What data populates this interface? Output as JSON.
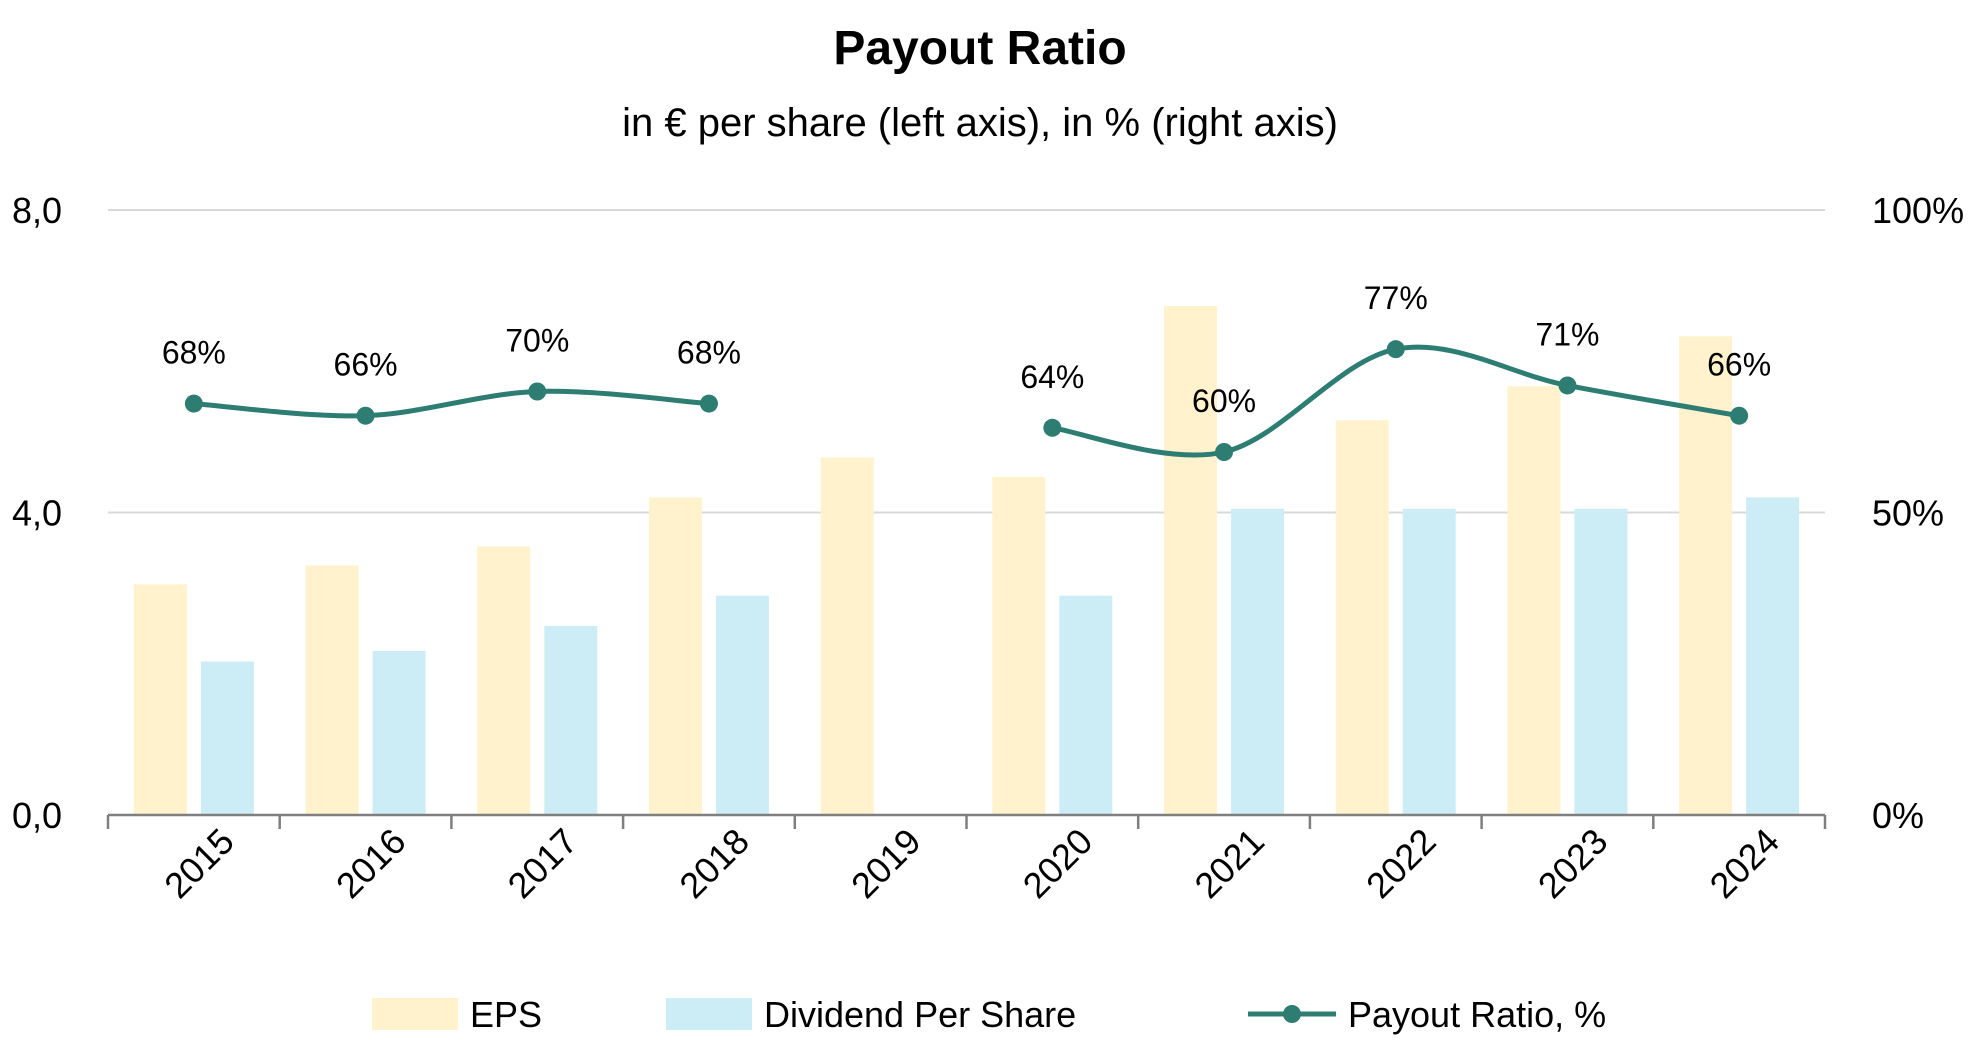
{
  "chart_data": {
    "type": "bar",
    "title": "Payout Ratio",
    "subtitle": "in € per share (left axis), in % (right axis)",
    "categories": [
      "2015",
      "2016",
      "2017",
      "2018",
      "2019",
      "2020",
      "2021",
      "2022",
      "2023",
      "2024"
    ],
    "y_left": {
      "min": 0,
      "max": 8,
      "ticks": [
        0,
        4,
        8
      ],
      "tick_labels": [
        "0,0",
        "4,0",
        "8,0"
      ]
    },
    "y_right": {
      "min": 0,
      "max": 100,
      "ticks": [
        0,
        50,
        100
      ],
      "tick_labels": [
        "0%",
        "50%",
        "100%"
      ]
    },
    "grid": true,
    "legend_position": "bottom",
    "series": [
      {
        "name": "EPS",
        "kind": "bar",
        "axis": "left",
        "color": "#FFF2CC",
        "values": [
          3.05,
          3.3,
          3.55,
          4.2,
          4.73,
          4.47,
          6.73,
          5.22,
          5.67,
          6.33
        ]
      },
      {
        "name": "Dividend Per Share",
        "kind": "bar",
        "axis": "left",
        "color": "#CDEDF6",
        "values": [
          2.03,
          2.17,
          2.5,
          2.9,
          null,
          2.9,
          4.05,
          4.05,
          4.05,
          4.2
        ]
      },
      {
        "name": "Payout Ratio, %",
        "kind": "line",
        "axis": "right",
        "color": "#2E7D73",
        "values": [
          68,
          66,
          70,
          68,
          null,
          64,
          60,
          77,
          71,
          66
        ],
        "labels": [
          "68%",
          "66%",
          "70%",
          "68%",
          "",
          "64%",
          "60%",
          "77%",
          "71%",
          "66%"
        ]
      }
    ]
  }
}
